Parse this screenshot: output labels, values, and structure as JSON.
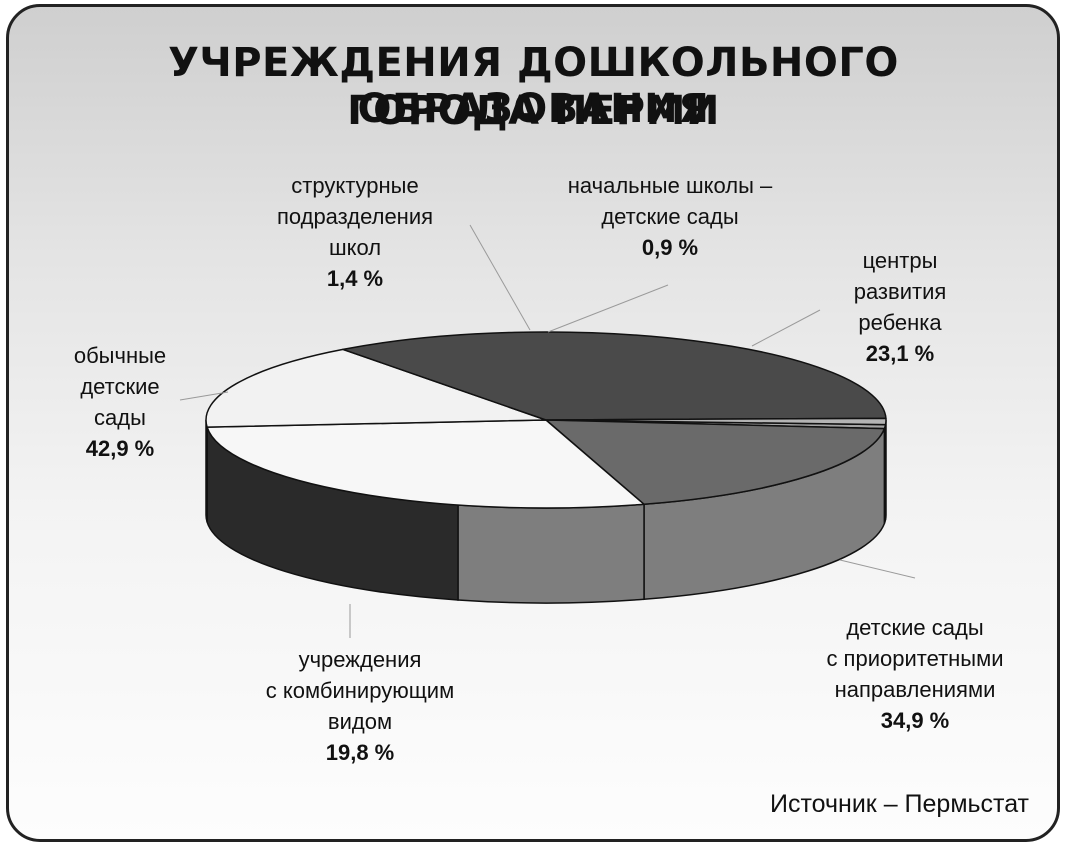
{
  "chart_data": {
    "type": "pie",
    "title_lines": [
      "УЧРЕЖДЕНИЯ ДОШКОЛЬНОГО ОБРАЗОВАНИЯ",
      "ГОРОДА ПЕРМИ"
    ],
    "slices": [
      {
        "label_lines": [
          "начальные школы –",
          "детские сады"
        ],
        "value": 0.9,
        "value_label": "0,9 %",
        "color": "#a4a4a4"
      },
      {
        "label_lines": [
          "центры",
          "развития",
          "ребенка"
        ],
        "value": 23.1,
        "value_label": "23,1 %",
        "color": "#6a6a6a"
      },
      {
        "label_lines": [
          "детские сады",
          "с приоритетными",
          "направлениями"
        ],
        "value": 34.9,
        "value_label": "34,9 %",
        "color": "#f7f7f7"
      },
      {
        "label_lines": [
          "учреждения",
          "с комбинирующим",
          "видом"
        ],
        "value": 19.8,
        "value_label": "19,8 %",
        "color": "#f2f2f2"
      },
      {
        "label_lines": [
          "обычные",
          "детские",
          "сады"
        ],
        "value": 42.9,
        "value_label": "42,9 %",
        "color": "#4a4a4a"
      },
      {
        "label_lines": [
          "структурные",
          "подразделения",
          "школ"
        ],
        "value": 1.4,
        "value_label": "1,4 %",
        "color": "#b4b4b4"
      }
    ],
    "side_colors": {
      "front_right": "#7e7e7e",
      "front_left": "#2a2a2a"
    },
    "source": "Источник – Пермьстат"
  }
}
